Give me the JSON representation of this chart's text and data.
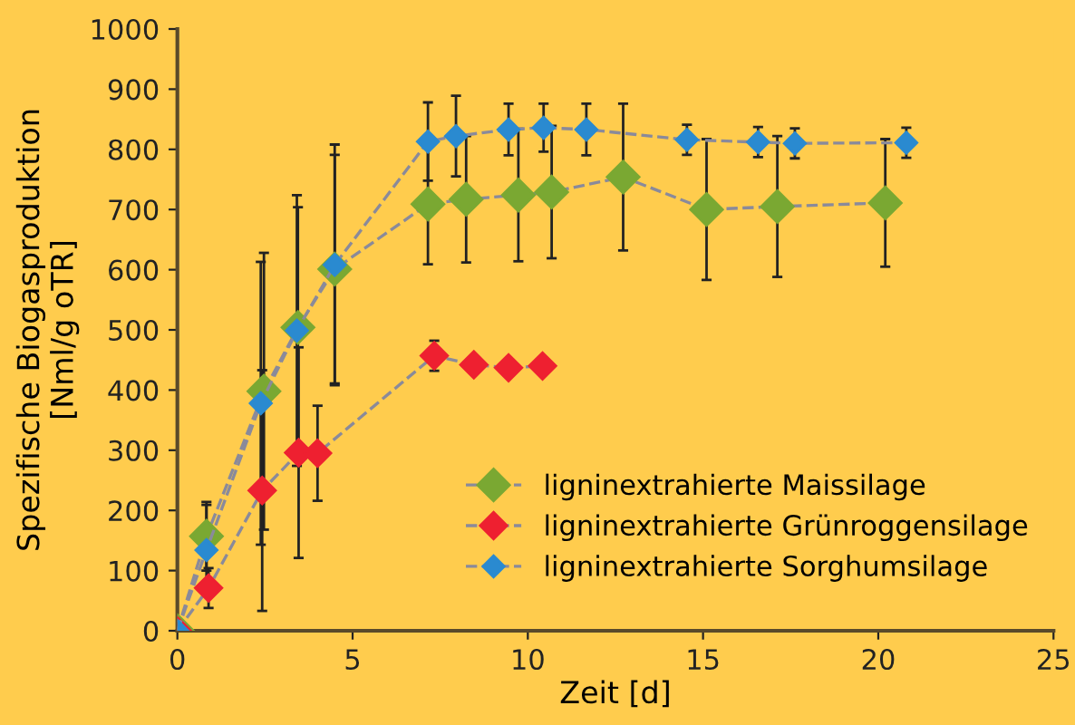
{
  "chart_data": {
    "type": "line",
    "xlabel": "Zeit [d]",
    "ylabel": "Spezifische Biogasproduktion\n[Nml/g oTR]",
    "xlim": [
      0,
      25
    ],
    "xticks": [
      0,
      5,
      10,
      15,
      20,
      25
    ],
    "ylim": [
      0,
      1000
    ],
    "yticks": [
      0,
      100,
      200,
      300,
      400,
      500,
      600,
      700,
      800,
      900,
      1000
    ],
    "grid": false,
    "legend": "bottom right",
    "marker": "diamond",
    "line_style": "dashed",
    "series": [
      {
        "name": "ligninextrahierte Maissilage",
        "color": "#7aa832",
        "x": [
          0,
          0.83,
          2.47,
          3.44,
          4.49,
          7.15,
          8.24,
          9.73,
          10.68,
          12.72,
          15.1,
          17.12,
          20.2
        ],
        "values": [
          0,
          157,
          398,
          504,
          601,
          709,
          717,
          724,
          729,
          754,
          700,
          705,
          711
        ],
        "errors": [
          null,
          57,
          230,
          200,
          190,
          100,
          105,
          110,
          110,
          122,
          117,
          117,
          106
        ]
      },
      {
        "name": "ligninextrahierte Grünroggensilage",
        "color": "#ee2030",
        "x": [
          0,
          0.89,
          2.42,
          3.46,
          4.0,
          7.33,
          8.46,
          9.45,
          10.42
        ],
        "values": [
          0,
          71,
          233,
          296,
          295,
          457,
          442,
          437,
          440
        ],
        "errors": [
          null,
          33,
          200,
          175,
          79,
          25,
          null,
          null,
          null
        ]
      },
      {
        "name": "ligninextrahierte Sorghumsilage",
        "color": "#2a8ad0",
        "x": [
          0,
          0.83,
          2.38,
          3.41,
          4.49,
          7.15,
          7.95,
          9.45,
          10.45,
          11.67,
          14.54,
          16.57,
          17.62,
          20.8
        ],
        "values": [
          0,
          134,
          378,
          499,
          608,
          813,
          822,
          833,
          836,
          833,
          816,
          812,
          810,
          811
        ],
        "errors": [
          null,
          75,
          235,
          225,
          200,
          65,
          67,
          43,
          40,
          43,
          25,
          25,
          25,
          25
        ]
      }
    ]
  }
}
